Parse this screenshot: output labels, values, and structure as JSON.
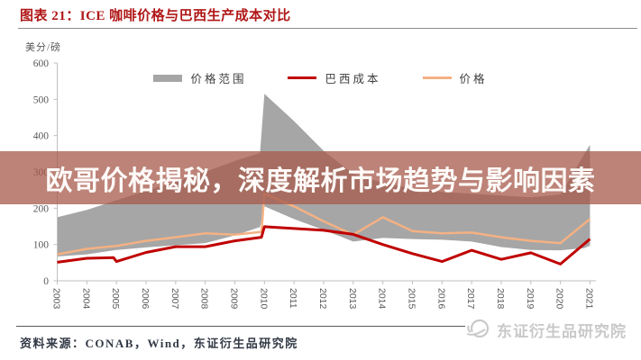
{
  "header": {
    "title": "图表 21：ICE 咖啡价格与巴西生产成本对比"
  },
  "overlay_banner": {
    "text": "欧哥价格揭秘，深度解析市场趋势与影响因素"
  },
  "footer": {
    "source": "资料来源：CONAB，Wind，东证衍生品研究院",
    "watermark": "东证衍生品研究院"
  },
  "colors": {
    "title_red": "#b01717",
    "band_gray": "#A6A6A6",
    "cost_red": "#C00000",
    "price_orange": "#F4B183",
    "axis_gray": "#bfbfbf",
    "tick_text_gray": "#595959",
    "banner_bg": "rgba(167,90,75,0.75)",
    "banner_text": "#fdfaf8",
    "watermark_gray": "#c9c9c9"
  },
  "chart_data": {
    "type": "area+line",
    "y_unit_label": "美分/磅",
    "ylim": [
      0,
      600
    ],
    "yticks": [
      0,
      100,
      200,
      300,
      400,
      500,
      600
    ],
    "x_years": [
      2003,
      2004,
      2005,
      2006,
      2007,
      2008,
      2009,
      2010,
      2011,
      2012,
      2013,
      2014,
      2015,
      2016,
      2017,
      2018,
      2019,
      2020,
      2021
    ],
    "grid": false,
    "legend_position": "top-center",
    "legend": [
      {
        "label": "价格范围",
        "type": "band",
        "color": "#A6A6A6"
      },
      {
        "label": "巴西成本",
        "type": "line",
        "color": "#C00000"
      },
      {
        "label": "价格",
        "type": "line",
        "color": "#F4B183"
      }
    ],
    "series": {
      "price_range_band": {
        "name": "价格范围",
        "points_year_min_max": [
          [
            2003,
            67,
            175
          ],
          [
            2004,
            73,
            195
          ],
          [
            2005,
            85,
            222
          ],
          [
            2006,
            92,
            248
          ],
          [
            2007,
            98,
            272
          ],
          [
            2008,
            104,
            300
          ],
          [
            2009,
            125,
            330
          ],
          [
            2009.85,
            148,
            352
          ],
          [
            2010,
            205,
            515
          ],
          [
            2011,
            170,
            440
          ],
          [
            2012,
            140,
            358
          ],
          [
            2013,
            108,
            295
          ],
          [
            2014,
            118,
            270
          ],
          [
            2015,
            115,
            255
          ],
          [
            2016,
            113,
            245
          ],
          [
            2017,
            108,
            240
          ],
          [
            2018,
            93,
            235
          ],
          [
            2019,
            85,
            230
          ],
          [
            2020,
            84,
            238
          ],
          [
            2020.8,
            90,
            348
          ],
          [
            2021,
            97,
            375
          ]
        ]
      },
      "brazil_cost": {
        "name": "巴西成本",
        "points_year_value": [
          [
            2003,
            51
          ],
          [
            2004,
            62
          ],
          [
            2004.9,
            64
          ],
          [
            2005,
            53
          ],
          [
            2006,
            78
          ],
          [
            2007,
            94
          ],
          [
            2008,
            94
          ],
          [
            2009,
            110
          ],
          [
            2009.9,
            120
          ],
          [
            2010,
            149
          ],
          [
            2011,
            144
          ],
          [
            2012,
            139
          ],
          [
            2013,
            128
          ],
          [
            2014,
            100
          ],
          [
            2015,
            75
          ],
          [
            2016,
            53
          ],
          [
            2017,
            84
          ],
          [
            2018,
            59
          ],
          [
            2019,
            77
          ],
          [
            2020,
            46
          ],
          [
            2021,
            115
          ]
        ]
      },
      "price": {
        "name": "价格",
        "points_year_value": [
          [
            2003,
            73
          ],
          [
            2004,
            88
          ],
          [
            2005,
            96
          ],
          [
            2006,
            110
          ],
          [
            2007,
            120
          ],
          [
            2008,
            131
          ],
          [
            2009,
            127
          ],
          [
            2009.9,
            135
          ],
          [
            2010,
            240
          ],
          [
            2011,
            205
          ],
          [
            2012,
            164
          ],
          [
            2013,
            127
          ],
          [
            2014,
            175
          ],
          [
            2015,
            137
          ],
          [
            2016,
            131
          ],
          [
            2017,
            133
          ],
          [
            2018,
            120
          ],
          [
            2019,
            110
          ],
          [
            2020,
            104
          ],
          [
            2021,
            170
          ]
        ]
      }
    }
  }
}
